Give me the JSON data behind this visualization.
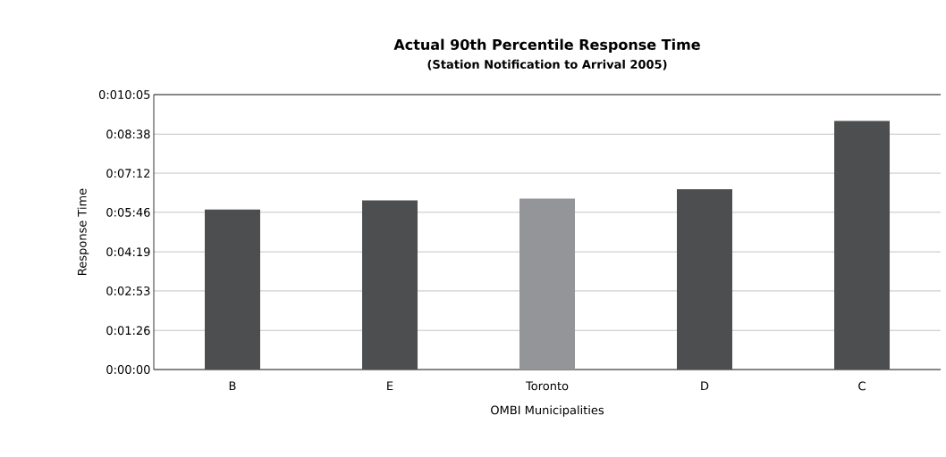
{
  "chart_data": {
    "type": "bar",
    "title": "Actual 90th Percentile Response Time",
    "subtitle": "(Station Notification to Arrival 2005)",
    "xlabel": "OMBI Municipalities",
    "ylabel": "Response Time",
    "categories": [
      "B",
      "E",
      "Toronto",
      "D",
      "C"
    ],
    "values": [
      352,
      372,
      376,
      397,
      547
    ],
    "colors": [
      "#4d4e50",
      "#4d4e50",
      "#949598",
      "#4d4e50",
      "#4d4e50"
    ],
    "ylim": [
      0,
      605
    ],
    "yticks": [
      {
        "value": 0,
        "label": "0:00:00"
      },
      {
        "value": 86,
        "label": "0:01:26"
      },
      {
        "value": 173,
        "label": "0:02:53"
      },
      {
        "value": 259,
        "label": "0:04:19"
      },
      {
        "value": 346,
        "label": "0:05:46"
      },
      {
        "value": 432,
        "label": "0:07:12"
      },
      {
        "value": 518,
        "label": "0:08:38"
      },
      {
        "value": 605,
        "label": "0:010:05"
      }
    ],
    "grid": "y"
  }
}
